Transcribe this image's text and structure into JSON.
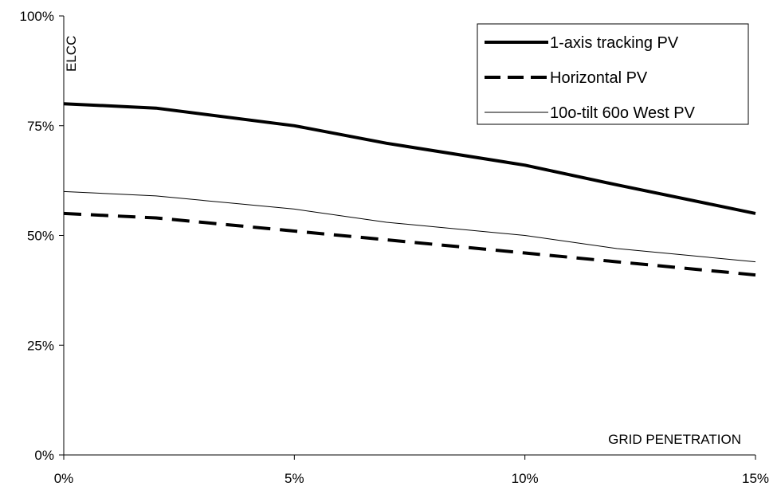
{
  "chart_data": {
    "type": "line",
    "xlabel": "GRID PENETRATION",
    "ylabel": "ELCC",
    "x": [
      0,
      2,
      5,
      7,
      10,
      12,
      15
    ],
    "x_unit": "%",
    "xlim": [
      0,
      15
    ],
    "ylim": [
      0,
      100
    ],
    "x_ticks": [
      "0%",
      "5%",
      "10%",
      "15%"
    ],
    "y_ticks": [
      "0%",
      "25%",
      "50%",
      "75%",
      "100%"
    ],
    "grid": false,
    "legend_position": "top-right",
    "series": [
      {
        "name": "1-axis tracking PV",
        "style": "thick-solid",
        "color": "#000000",
        "values": [
          80,
          79,
          75,
          71,
          66,
          61.5,
          55
        ]
      },
      {
        "name": "Horizontal PV",
        "style": "dashed",
        "color": "#000000",
        "values": [
          55,
          54,
          51,
          49,
          46,
          44,
          41
        ]
      },
      {
        "name": "10o-tilt 60o West PV",
        "style": "thin-solid",
        "color": "#000000",
        "values": [
          60,
          59,
          56,
          53,
          50,
          47,
          44
        ]
      }
    ]
  }
}
